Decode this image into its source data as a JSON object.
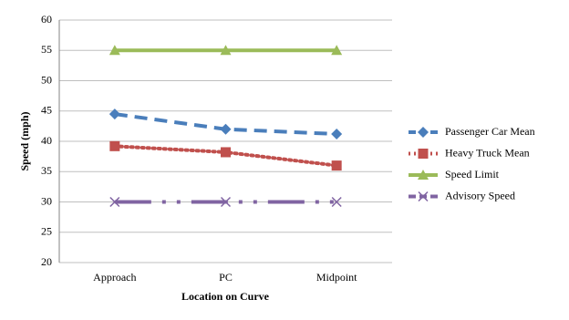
{
  "chart_data": {
    "type": "line",
    "x_label": "Location on Curve",
    "y_label": "Speed (mph)",
    "categories": [
      "Approach",
      "PC",
      "Midpoint"
    ],
    "series": [
      {
        "name": "Passenger Car Mean",
        "color": "#4a7ebb",
        "marker": "diamond",
        "dash": "14 8",
        "values": [
          44.5,
          42,
          41.2
        ]
      },
      {
        "name": "Heavy Truck Mean",
        "color": "#c0504d",
        "marker": "square",
        "dash": "2 4",
        "values": [
          39.2,
          38.2,
          36
        ]
      },
      {
        "name": "Speed Limit",
        "color": "#9bbb59",
        "marker": "triangle",
        "dash": "none",
        "values": [
          55,
          55,
          55
        ]
      },
      {
        "name": "Advisory Speed",
        "color": "#8064a2",
        "marker": "x",
        "dash": "40 12 4 12 4 12",
        "values": [
          30,
          30,
          30
        ]
      }
    ],
    "ylim": [
      20,
      60
    ],
    "yticks": [
      20,
      25,
      30,
      35,
      40,
      45,
      50,
      55,
      60
    ],
    "grid": true,
    "legend": "right"
  }
}
